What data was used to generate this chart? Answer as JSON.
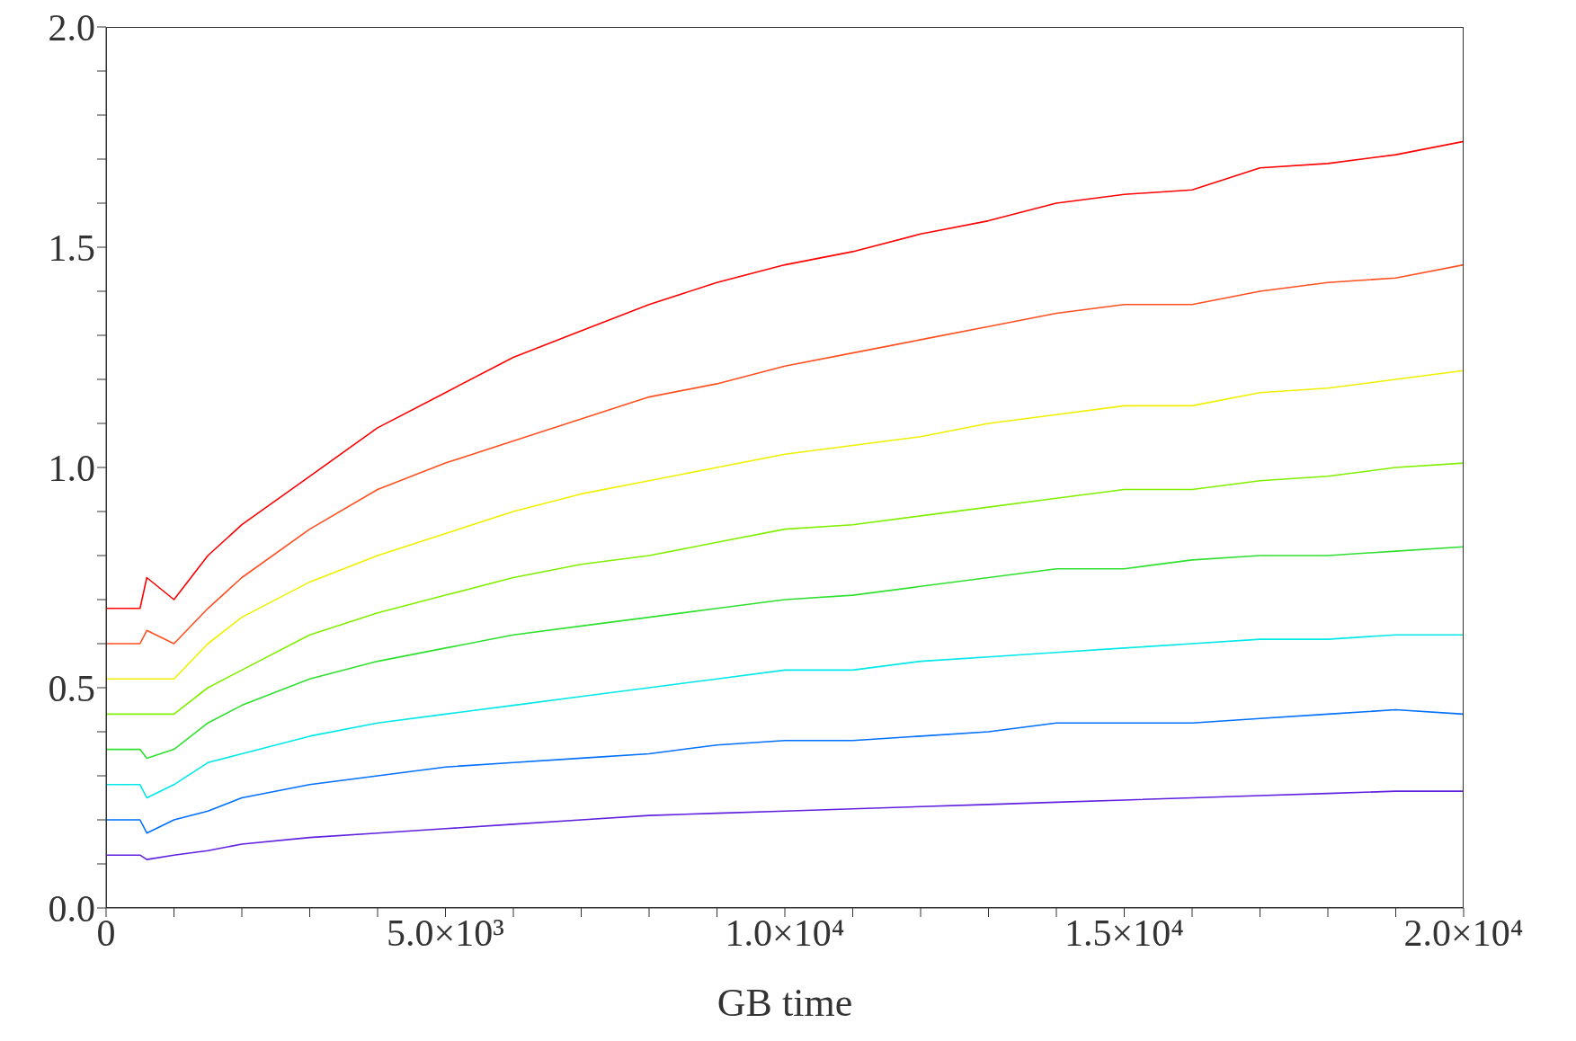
{
  "chart_data": {
    "type": "line",
    "xlabel": "GB time",
    "x": [
      0,
      500,
      600,
      1000,
      1500,
      2000,
      3000,
      4000,
      5000,
      6000,
      7000,
      8000,
      9000,
      10000,
      11000,
      12000,
      13000,
      14000,
      15000,
      16000,
      17000,
      18000,
      19000,
      20000
    ],
    "series": [
      {
        "color": "#ff0000",
        "values": [
          0.68,
          0.68,
          0.75,
          0.7,
          0.8,
          0.87,
          0.98,
          1.09,
          1.17,
          1.25,
          1.31,
          1.37,
          1.42,
          1.46,
          1.49,
          1.53,
          1.56,
          1.6,
          1.62,
          1.63,
          1.68,
          1.69,
          1.71,
          1.74
        ]
      },
      {
        "color": "#ff5020",
        "values": [
          0.6,
          0.6,
          0.63,
          0.6,
          0.68,
          0.75,
          0.86,
          0.95,
          1.01,
          1.06,
          1.11,
          1.16,
          1.19,
          1.23,
          1.26,
          1.29,
          1.32,
          1.35,
          1.37,
          1.37,
          1.4,
          1.42,
          1.43,
          1.46
        ]
      },
      {
        "color": "#f0f000",
        "values": [
          0.52,
          0.52,
          0.52,
          0.52,
          0.6,
          0.66,
          0.74,
          0.8,
          0.85,
          0.9,
          0.94,
          0.97,
          1.0,
          1.03,
          1.05,
          1.07,
          1.1,
          1.12,
          1.14,
          1.14,
          1.17,
          1.18,
          1.2,
          1.22
        ]
      },
      {
        "color": "#80f000",
        "values": [
          0.44,
          0.44,
          0.44,
          0.44,
          0.5,
          0.54,
          0.62,
          0.67,
          0.71,
          0.75,
          0.78,
          0.8,
          0.83,
          0.86,
          0.87,
          0.89,
          0.91,
          0.93,
          0.95,
          0.95,
          0.97,
          0.98,
          1.0,
          1.01
        ]
      },
      {
        "color": "#30e030",
        "values": [
          0.36,
          0.36,
          0.34,
          0.36,
          0.42,
          0.46,
          0.52,
          0.56,
          0.59,
          0.62,
          0.64,
          0.66,
          0.68,
          0.7,
          0.71,
          0.73,
          0.75,
          0.77,
          0.77,
          0.79,
          0.8,
          0.8,
          0.81,
          0.82
        ]
      },
      {
        "color": "#00e8e8",
        "values": [
          0.28,
          0.28,
          0.25,
          0.28,
          0.33,
          0.35,
          0.39,
          0.42,
          0.44,
          0.46,
          0.48,
          0.5,
          0.52,
          0.54,
          0.54,
          0.56,
          0.57,
          0.58,
          0.59,
          0.6,
          0.61,
          0.61,
          0.62,
          0.62
        ]
      },
      {
        "color": "#0070ff",
        "values": [
          0.2,
          0.2,
          0.17,
          0.2,
          0.22,
          0.25,
          0.28,
          0.3,
          0.32,
          0.33,
          0.34,
          0.35,
          0.37,
          0.38,
          0.38,
          0.39,
          0.4,
          0.42,
          0.42,
          0.42,
          0.43,
          0.44,
          0.45,
          0.44
        ]
      },
      {
        "color": "#6020e0",
        "values": [
          0.12,
          0.12,
          0.11,
          0.12,
          0.13,
          0.145,
          0.16,
          0.17,
          0.18,
          0.19,
          0.2,
          0.21,
          0.215,
          0.22,
          0.225,
          0.23,
          0.235,
          0.24,
          0.245,
          0.25,
          0.255,
          0.26,
          0.265,
          0.265
        ]
      }
    ],
    "xlim": [
      0,
      20000
    ],
    "xticks": [
      {
        "value": 0,
        "label": "0"
      },
      {
        "value": 1000,
        "label": null
      },
      {
        "value": 2000,
        "label": null
      },
      {
        "value": 3000,
        "label": null
      },
      {
        "value": 4000,
        "label": null
      },
      {
        "value": 5000,
        "label": "5.0×10³"
      },
      {
        "value": 6000,
        "label": null
      },
      {
        "value": 7000,
        "label": null
      },
      {
        "value": 8000,
        "label": null
      },
      {
        "value": 9000,
        "label": null
      },
      {
        "value": 10000,
        "label": "1.0×10⁴"
      },
      {
        "value": 11000,
        "label": null
      },
      {
        "value": 12000,
        "label": null
      },
      {
        "value": 13000,
        "label": null
      },
      {
        "value": 14000,
        "label": null
      },
      {
        "value": 15000,
        "label": "1.5×10⁴"
      },
      {
        "value": 16000,
        "label": null
      },
      {
        "value": 17000,
        "label": null
      },
      {
        "value": 18000,
        "label": null
      },
      {
        "value": 19000,
        "label": null
      },
      {
        "value": 20000,
        "label": "2.0×10⁴"
      }
    ],
    "ylim": [
      0,
      2
    ],
    "yticks": [
      {
        "value": 0,
        "label": "0.0"
      },
      {
        "value": 0.1,
        "label": null
      },
      {
        "value": 0.2,
        "label": null
      },
      {
        "value": 0.3,
        "label": null
      },
      {
        "value": 0.4,
        "label": null
      },
      {
        "value": 0.5,
        "label": "0.5"
      },
      {
        "value": 0.6,
        "label": null
      },
      {
        "value": 0.7,
        "label": null
      },
      {
        "value": 0.8,
        "label": null
      },
      {
        "value": 0.9,
        "label": null
      },
      {
        "value": 1.0,
        "label": "1.0"
      },
      {
        "value": 1.1,
        "label": null
      },
      {
        "value": 1.2,
        "label": null
      },
      {
        "value": 1.3,
        "label": null
      },
      {
        "value": 1.4,
        "label": null
      },
      {
        "value": 1.5,
        "label": "1.5"
      },
      {
        "value": 1.6,
        "label": null
      },
      {
        "value": 1.7,
        "label": null
      },
      {
        "value": 1.8,
        "label": null
      },
      {
        "value": 1.9,
        "label": null
      },
      {
        "value": 2.0,
        "label": "2.0"
      }
    ],
    "legend": false,
    "grid": false,
    "marker": "none",
    "line_style": "solid"
  }
}
